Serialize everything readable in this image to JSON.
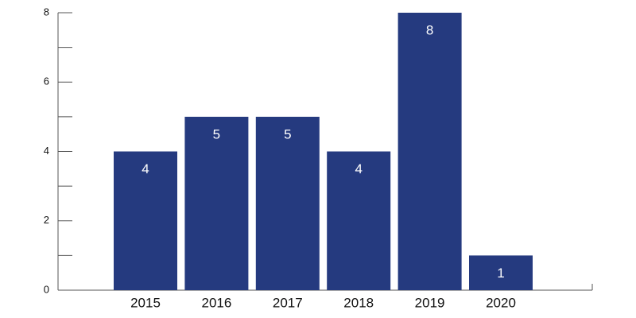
{
  "chart_data": {
    "type": "bar",
    "categories": [
      "2015",
      "2016",
      "2017",
      "2018",
      "2019",
      "2020"
    ],
    "values": [
      4,
      5,
      5,
      4,
      8,
      1
    ],
    "color": "#253a7f",
    "ylim": [
      0,
      8
    ],
    "yticks": [
      0,
      2,
      4,
      6,
      8
    ],
    "yminorticks": [
      1,
      3,
      5,
      7
    ],
    "grid": false,
    "show_value_labels": true
  }
}
